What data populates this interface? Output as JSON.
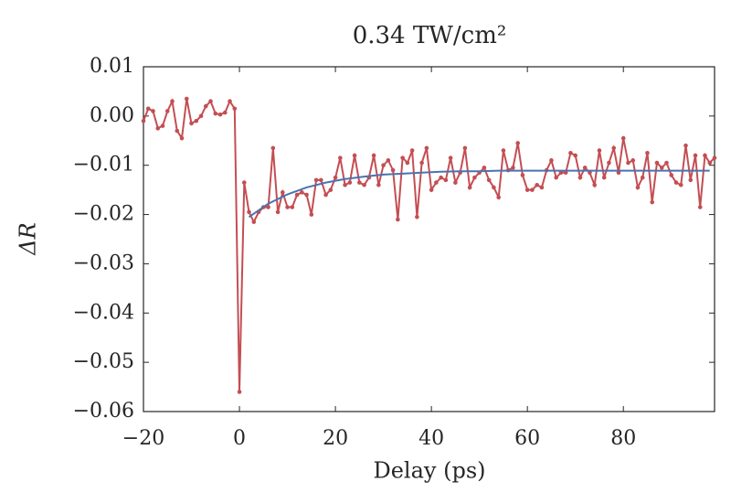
{
  "chart_data": {
    "type": "line",
    "title": "0.34 TW/cm²",
    "xlabel": "Delay (ps)",
    "ylabel": "ΔR",
    "xlim": [
      -20,
      99
    ],
    "ylim": [
      -0.06,
      0.01
    ],
    "xticks": [
      {
        "value": -20,
        "label": "−20"
      },
      0,
      20,
      40,
      60,
      80
    ],
    "yticks": [
      {
        "value": 0.01,
        "label": "0.01"
      },
      {
        "value": 0,
        "label": "0.00"
      },
      {
        "value": -0.01,
        "label": "−0.01"
      },
      {
        "value": -0.02,
        "label": "−0.02"
      },
      {
        "value": -0.03,
        "label": "−0.03"
      },
      {
        "value": -0.04,
        "label": "−0.04"
      },
      {
        "value": -0.05,
        "label": "−0.05"
      },
      {
        "value": -0.06,
        "label": "−0.06"
      }
    ],
    "grid": false,
    "series": [
      {
        "color": "#c44e52",
        "markers": true,
        "x": [
          -20,
          -19,
          -18,
          -17,
          -16,
          -15,
          -14,
          -13,
          -12,
          -11,
          -10,
          -9,
          -8,
          -7,
          -6,
          -5,
          -4,
          -3,
          -2,
          -1,
          0,
          1,
          2,
          3,
          4,
          5,
          6,
          7,
          8,
          9,
          10,
          11,
          12,
          13,
          14,
          15,
          16,
          17,
          18,
          19,
          20,
          21,
          22,
          23,
          24,
          25,
          26,
          27,
          28,
          29,
          30,
          31,
          32,
          33,
          34,
          35,
          36,
          37,
          38,
          39,
          40,
          41,
          42,
          43,
          44,
          45,
          46,
          47,
          48,
          49,
          50,
          51,
          52,
          53,
          54,
          55,
          56,
          57,
          58,
          59,
          60,
          61,
          62,
          63,
          64,
          65,
          66,
          67,
          68,
          69,
          70,
          71,
          72,
          73,
          74,
          75,
          76,
          77,
          78,
          79,
          80,
          81,
          82,
          83,
          84,
          85,
          86,
          87,
          88,
          89,
          90,
          91,
          92,
          93,
          94,
          95,
          96,
          97,
          98,
          99
        ],
        "values": [
          -0.001,
          0.0015,
          0.001,
          -0.0025,
          -0.002,
          0.001,
          0.003,
          -0.003,
          -0.0045,
          0.0035,
          -0.0015,
          -0.001,
          0.0,
          0.002,
          0.003,
          0.0005,
          0.0003,
          0.0007,
          0.003,
          0.0015,
          -0.056,
          -0.0135,
          -0.0195,
          -0.0215,
          -0.0195,
          -0.0185,
          -0.0185,
          -0.0065,
          -0.0195,
          -0.0155,
          -0.0185,
          -0.0185,
          -0.016,
          -0.0155,
          -0.016,
          -0.02,
          -0.013,
          -0.013,
          -0.016,
          -0.015,
          -0.0125,
          -0.0085,
          -0.014,
          -0.0135,
          -0.008,
          -0.0135,
          -0.014,
          -0.0125,
          -0.008,
          -0.014,
          -0.01,
          -0.009,
          -0.011,
          -0.021,
          -0.0085,
          -0.0095,
          -0.007,
          -0.0205,
          -0.0095,
          -0.0065,
          -0.015,
          -0.0135,
          -0.0125,
          -0.013,
          -0.0085,
          -0.0135,
          -0.0115,
          -0.0065,
          -0.0145,
          -0.0125,
          -0.0115,
          -0.0105,
          -0.013,
          -0.0145,
          -0.0165,
          -0.007,
          -0.011,
          -0.0105,
          -0.0055,
          -0.012,
          -0.015,
          -0.015,
          -0.014,
          -0.0145,
          -0.011,
          -0.009,
          -0.0125,
          -0.0115,
          -0.0115,
          -0.0075,
          -0.008,
          -0.0125,
          -0.0105,
          -0.0115,
          -0.014,
          -0.007,
          -0.0125,
          -0.0095,
          -0.0065,
          -0.0115,
          -0.0045,
          -0.0095,
          -0.009,
          -0.0145,
          -0.0125,
          -0.0075,
          -0.0175,
          -0.0095,
          -0.0105,
          -0.0095,
          -0.012,
          -0.0135,
          -0.014,
          -0.006,
          -0.013,
          -0.008,
          -0.0185,
          -0.008,
          -0.0095,
          -0.0085
        ]
      },
      {
        "color": "#4c72b0",
        "markers": false,
        "x": [
          2,
          6,
          10,
          14,
          18,
          22,
          26,
          30,
          34,
          38,
          42,
          46,
          50,
          54,
          58,
          62,
          66,
          70,
          74,
          78,
          82,
          86,
          90,
          94,
          98
        ],
        "values": [
          -0.0205,
          -0.0178,
          -0.0159,
          -0.0145,
          -0.0135,
          -0.0128,
          -0.0123,
          -0.0119,
          -0.0117,
          -0.0115,
          -0.0113,
          -0.0112,
          -0.0112,
          -0.0111,
          -0.0111,
          -0.0111,
          -0.0111,
          -0.0111,
          -0.0111,
          -0.0111,
          -0.0111,
          -0.0111,
          -0.0111,
          -0.0111,
          -0.0111
        ]
      }
    ]
  }
}
